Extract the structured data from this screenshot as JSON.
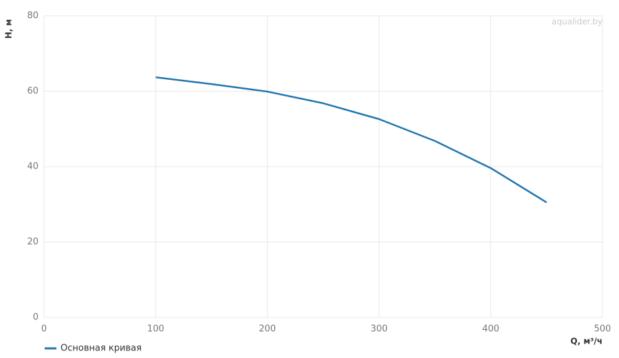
{
  "chart_data": {
    "type": "line",
    "x_label": "Q, м³/ч",
    "y_label": "H, м",
    "watermark": "aqualider.by",
    "x": [
      100,
      150,
      200,
      250,
      300,
      350,
      400,
      450
    ],
    "series": [
      {
        "name": "Основная кривая",
        "color": "#2376b0",
        "values": [
          63.7,
          61.9,
          59.9,
          56.8,
          52.6,
          46.8,
          39.6,
          30.5
        ]
      }
    ],
    "xlim": [
      0,
      500
    ],
    "xticks": [
      0,
      100,
      200,
      300,
      400,
      500
    ],
    "ylim": [
      0,
      80
    ],
    "yticks": [
      0,
      20,
      40,
      60,
      80
    ],
    "grid": true
  }
}
